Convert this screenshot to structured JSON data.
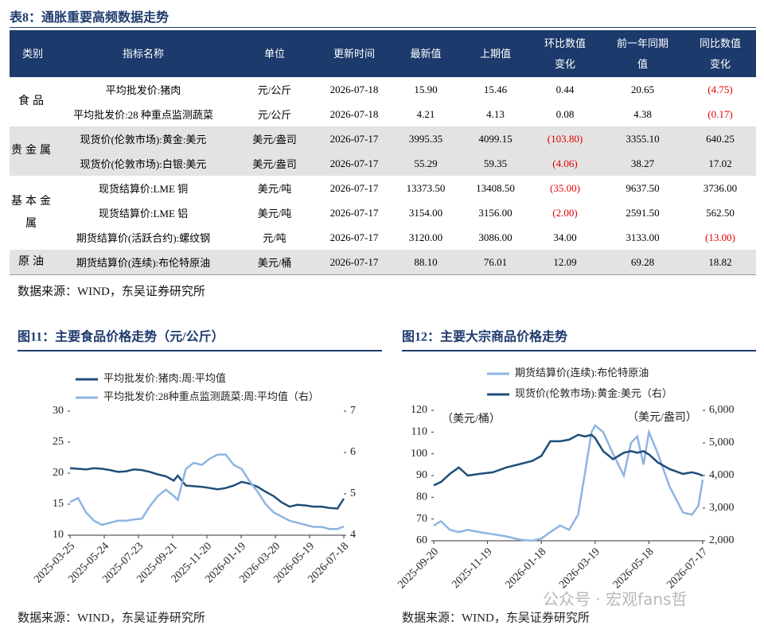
{
  "table": {
    "title": "表8：通胀重要高频数据走势",
    "header": [
      "类别",
      "指标名称",
      "单位",
      "更新时间",
      "最新值",
      "上期值",
      [
        "环比数值",
        "变化"
      ],
      [
        "前一年同期",
        "值"
      ],
      [
        "同比数值",
        "变化"
      ]
    ],
    "groups": [
      {
        "category": "食品",
        "rows": [
          [
            "平均批发价:猪肉",
            "元/公斤",
            "2026-07-18",
            "15.90",
            "15.46",
            "0.44",
            "20.65",
            "(4.75)"
          ],
          [
            "平均批发价:28 种重点监测蔬菜",
            "元/公斤",
            "2026-07-18",
            "4.21",
            "4.13",
            "0.08",
            "4.38",
            "(0.17)"
          ]
        ]
      },
      {
        "category": "贵金属",
        "rows": [
          [
            "现货价(伦敦市场):黄金:美元",
            "美元/盎司",
            "2026-07-17",
            "3995.35",
            "4099.15",
            "(103.80)",
            "3355.10",
            "640.25"
          ],
          [
            "现货价(伦敦市场):白银:美元",
            "美元/盎司",
            "2026-07-17",
            "55.29",
            "59.35",
            "(4.06)",
            "38.27",
            "17.02"
          ]
        ]
      },
      {
        "category": "基本金属",
        "rows": [
          [
            "现货结算价:LME 铜",
            "美元/吨",
            "2026-07-17",
            "13373.50",
            "13408.50",
            "(35.00)",
            "9637.50",
            "3736.00"
          ],
          [
            "现货结算价:LME 铝",
            "美元/吨",
            "2026-07-17",
            "3154.00",
            "3156.00",
            "(2.00)",
            "2591.50",
            "562.50"
          ],
          [
            "期货结算价(活跃合约):螺纹钢",
            "元/吨",
            "2026-07-17",
            "3120.00",
            "3086.00",
            "34.00",
            "3133.00",
            "(13.00)"
          ]
        ]
      },
      {
        "category": "原油",
        "rows": [
          [
            "期货结算价(连续):布伦特原油",
            "美元/桶",
            "2026-07-17",
            "88.10",
            "76.01",
            "12.09",
            "69.28",
            "18.82"
          ]
        ]
      }
    ],
    "source": "数据来源：WIND，东吴证券研究所"
  },
  "chart_data": [
    {
      "type": "line",
      "title": "图11：主要食品价格走势（元/公斤）",
      "source": "数据来源：WIND，东吴证券研究所",
      "x": [
        "2025-03-25",
        "2025-04-08",
        "2025-04-22",
        "2025-05-06",
        "2025-05-20",
        "2025-06-03",
        "2025-06-17",
        "2025-07-01",
        "2025-07-15",
        "2025-07-29",
        "2025-08-12",
        "2025-08-26",
        "2025-09-09",
        "2025-09-23",
        "2025-09-30",
        "2025-10-14",
        "2025-10-28",
        "2025-11-11",
        "2025-11-25",
        "2025-12-09",
        "2025-12-23",
        "2026-01-06",
        "2026-01-20",
        "2026-02-03",
        "2026-02-17",
        "2026-03-03",
        "2026-03-17",
        "2026-03-31",
        "2026-04-14",
        "2026-04-28",
        "2026-05-12",
        "2026-05-26",
        "2026-06-09",
        "2026-06-23",
        "2026-07-07",
        "2026-07-18"
      ],
      "xlim": [
        "2025-03-25",
        "2026-07-18"
      ],
      "xticks": [
        "2025-03-25",
        "2025-05-24",
        "2025-07-23",
        "2025-09-21",
        "2025-11-20",
        "2026-01-19",
        "2026-03-20",
        "2026-05-19",
        "2026-07-18"
      ],
      "ylim": [
        10,
        30
      ],
      "yticks": [
        10,
        15,
        20,
        25,
        30
      ],
      "y2lim": [
        4,
        7
      ],
      "y2ticks": [
        4,
        5,
        6,
        7
      ],
      "series": [
        {
          "name": "平均批发价:猪肉:周:平均值",
          "color": "#1f4e79",
          "values": [
            20.8,
            20.7,
            20.6,
            20.8,
            20.7,
            20.5,
            20.2,
            20.3,
            20.6,
            20.5,
            20.2,
            19.8,
            19.5,
            18.8,
            19.6,
            18.0,
            17.9,
            17.8,
            17.6,
            17.4,
            17.6,
            18.0,
            18.6,
            18.3,
            17.8,
            17.0,
            16.3,
            15.3,
            14.6,
            14.9,
            14.8,
            14.6,
            14.6,
            14.4,
            14.3,
            15.9
          ]
        },
        {
          "name": "平均批发价:28种重点监测蔬菜:周:平均值（右）",
          "color": "#8eb4e3",
          "axis": "y2",
          "values": [
            4.8,
            4.9,
            4.55,
            4.35,
            4.25,
            4.3,
            4.35,
            4.35,
            4.38,
            4.4,
            4.7,
            4.95,
            5.1,
            4.95,
            4.85,
            5.6,
            5.75,
            5.7,
            5.85,
            5.95,
            5.95,
            5.7,
            5.6,
            5.3,
            5.05,
            4.75,
            4.55,
            4.45,
            4.35,
            4.3,
            4.25,
            4.2,
            4.2,
            4.15,
            4.15,
            4.21
          ]
        }
      ]
    },
    {
      "type": "line",
      "title": "图12：主要大宗商品价格走势",
      "source": "数据来源：WIND，东吴证券研究所",
      "y_unit": "（美元/桶）",
      "y2_unit": "（美元/盎司）",
      "x": [
        "2025-09-20",
        "2025-09-28",
        "2025-10-08",
        "2025-10-18",
        "2025-10-28",
        "2025-11-10",
        "2025-11-25",
        "2025-12-10",
        "2025-12-25",
        "2026-01-08",
        "2026-01-18",
        "2026-01-28",
        "2026-02-08",
        "2026-02-18",
        "2026-02-28",
        "2026-03-08",
        "2026-03-15",
        "2026-03-19",
        "2026-03-28",
        "2026-04-08",
        "2026-04-20",
        "2026-04-28",
        "2026-05-05",
        "2026-05-12",
        "2026-05-18",
        "2026-05-28",
        "2026-06-10",
        "2026-06-25",
        "2026-07-05",
        "2026-07-12",
        "2026-07-17"
      ],
      "xlim": [
        "2025-09-20",
        "2026-07-17"
      ],
      "xticks": [
        "2025-09-20",
        "2025-11-19",
        "2026-01-18",
        "2026-03-19",
        "2026-05-18",
        "2026-07-17"
      ],
      "ylim": [
        60,
        120
      ],
      "yticks": [
        60,
        70,
        80,
        90,
        100,
        110,
        120
      ],
      "y2lim": [
        2000,
        6000
      ],
      "y2ticks": [
        {
          "value": 2000,
          "label": "2,000"
        },
        {
          "value": 3000,
          "label": "3,000"
        },
        {
          "value": 4000,
          "label": "4,000"
        },
        {
          "value": 5000,
          "label": "5,000"
        },
        {
          "value": 6000,
          "label": "6,000"
        }
      ],
      "series": [
        {
          "name": "期货结算价(连续):布伦特原油",
          "color": "#8eb4e3",
          "values": [
            67,
            69,
            65,
            64,
            65,
            64,
            63,
            62,
            60.5,
            60,
            61,
            64,
            67,
            65,
            72,
            92,
            110,
            113,
            110,
            100,
            90,
            105,
            108,
            95,
            110,
            100,
            85,
            73,
            72,
            76,
            88.1
          ]
        },
        {
          "name": "现货价(伦敦市场):黄金:美元（右）",
          "color": "#1f4e79",
          "axis": "y2",
          "values": [
            3700,
            3800,
            4050,
            4250,
            4000,
            4050,
            4100,
            4250,
            4350,
            4450,
            4600,
            5050,
            5050,
            5100,
            5250,
            5200,
            5250,
            5150,
            4750,
            4500,
            4700,
            4750,
            4700,
            4750,
            4650,
            4400,
            4200,
            4050,
            4100,
            4050,
            3995.35
          ]
        }
      ]
    }
  ],
  "watermark": "公众号 · 宏观fans哲"
}
